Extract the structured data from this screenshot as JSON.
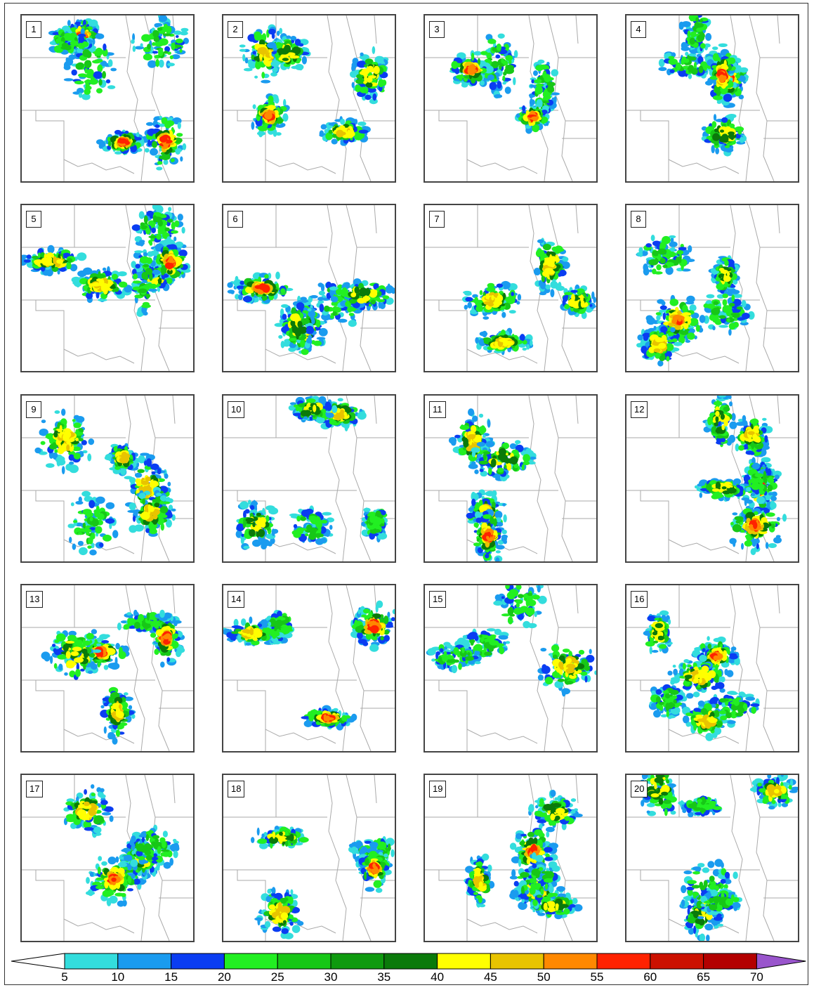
{
  "panels": [
    {
      "label": "1"
    },
    {
      "label": "2"
    },
    {
      "label": "3"
    },
    {
      "label": "4"
    },
    {
      "label": "5"
    },
    {
      "label": "6"
    },
    {
      "label": "7"
    },
    {
      "label": "8"
    },
    {
      "label": "9"
    },
    {
      "label": "10"
    },
    {
      "label": "11"
    },
    {
      "label": "12"
    },
    {
      "label": "13"
    },
    {
      "label": "14"
    },
    {
      "label": "15"
    },
    {
      "label": "16"
    },
    {
      "label": "17"
    },
    {
      "label": "18"
    },
    {
      "label": "19"
    },
    {
      "label": "20"
    }
  ],
  "colorbar": {
    "ticks": [
      "5",
      "10",
      "15",
      "20",
      "25",
      "30",
      "35",
      "40",
      "45",
      "50",
      "55",
      "60",
      "65",
      "70"
    ],
    "colors": [
      "#ffffff",
      "#33dddd",
      "#1a9bef",
      "#0a3df2",
      "#22ef22",
      "#17c717",
      "#0f9a0f",
      "#0a7a0a",
      "#ffff00",
      "#e8c400",
      "#ff8800",
      "#ff2200",
      "#cc1100",
      "#b30000",
      "#ff33ff",
      "#9955cc"
    ]
  },
  "palette": {
    "cyan": "#33dddd",
    "lightblue": "#1a9bef",
    "blue": "#0a3df2",
    "green": "#22ef22",
    "midgreen": "#17c717",
    "darkgreen": "#0a7a0a",
    "yellow": "#ffff00",
    "gold": "#e8c400",
    "orange": "#ff8800",
    "red": "#ff2200"
  }
}
